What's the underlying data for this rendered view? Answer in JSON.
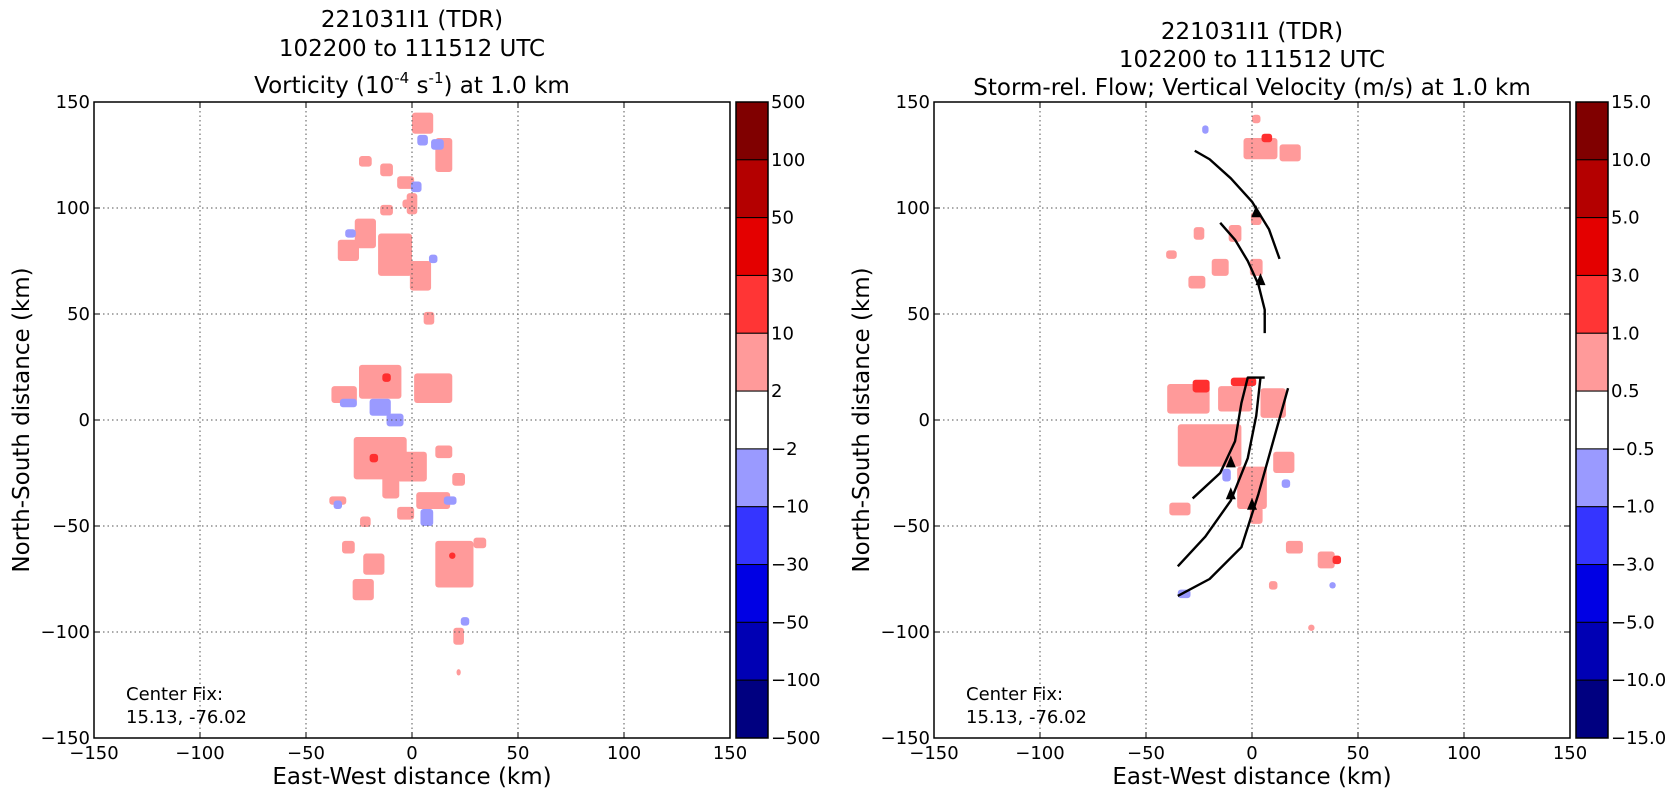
{
  "chart_data": [
    {
      "type": "heatmap",
      "title_line1": "221031I1 (TDR)",
      "title_line2": "102200 to 111512 UTC",
      "title_line3": {
        "pre": "Vorticity (10",
        "exp1": "-4",
        "mid": " s",
        "exp2": "-1",
        "post": ") at 1.0 km"
      },
      "xlabel": "East-West distance (km)",
      "ylabel": "North-South distance (km)",
      "xlim": [
        -150,
        150
      ],
      "ylim": [
        -150,
        150
      ],
      "xticks": [
        -150,
        -100,
        -50,
        0,
        50,
        100,
        150
      ],
      "yticks": [
        -150,
        -100,
        -50,
        0,
        50,
        100,
        150
      ],
      "xtick_labels": [
        "−150",
        "−100",
        "−50",
        "0",
        "50",
        "100",
        "150"
      ],
      "ytick_labels": [
        "−150",
        "−100",
        "−50",
        "0",
        "50",
        "100",
        "150"
      ],
      "grid": true,
      "annotation_line1": "Center Fix:",
      "annotation_line2": "15.13, -76.02",
      "colorbar": {
        "labels": [
          "500",
          "100",
          "50",
          "30",
          "10",
          "2",
          "−2",
          "−10",
          "−30",
          "−50",
          "−100",
          "−500"
        ],
        "colors": [
          "#800000",
          "#b40000",
          "#e40000",
          "#ff3535",
          "#ff9a9a",
          "#ffffff",
          "#9a9aff",
          "#3535ff",
          "#0000e4",
          "#0000b4",
          "#000080"
        ]
      },
      "patches": [
        {
          "x": -22,
          "y": 122,
          "w": 6,
          "h": 5,
          "c": 1
        },
        {
          "x": -12,
          "y": 118,
          "w": 6,
          "h": 6,
          "c": 1
        },
        {
          "x": 5,
          "y": 140,
          "w": 10,
          "h": 10,
          "c": 1
        },
        {
          "x": 15,
          "y": 125,
          "w": 8,
          "h": 16,
          "c": 1
        },
        {
          "x": 12,
          "y": 130,
          "w": 6,
          "h": 5,
          "c": 0
        },
        {
          "x": 5,
          "y": 132,
          "w": 5,
          "h": 5,
          "c": 0
        },
        {
          "x": -3,
          "y": 112,
          "w": 8,
          "h": 6,
          "c": 1
        },
        {
          "x": 2,
          "y": 110,
          "w": 5,
          "h": 5,
          "c": 0
        },
        {
          "x": 0,
          "y": 102,
          "w": 5,
          "h": 10,
          "c": 1
        },
        {
          "x": -12,
          "y": 99,
          "w": 6,
          "h": 5,
          "c": 1
        },
        {
          "x": -2,
          "y": 102,
          "w": 5,
          "h": 4,
          "c": 1
        },
        {
          "x": -22,
          "y": 88,
          "w": 10,
          "h": 14,
          "c": 1
        },
        {
          "x": -30,
          "y": 80,
          "w": 10,
          "h": 10,
          "c": 1
        },
        {
          "x": -8,
          "y": 78,
          "w": 16,
          "h": 20,
          "c": 1
        },
        {
          "x": 4,
          "y": 68,
          "w": 10,
          "h": 14,
          "c": 1
        },
        {
          "x": -29,
          "y": 88,
          "w": 5,
          "h": 4,
          "c": 0
        },
        {
          "x": 10,
          "y": 76,
          "w": 4,
          "h": 4,
          "c": 0
        },
        {
          "x": 8,
          "y": 48,
          "w": 5,
          "h": 6,
          "c": 1
        },
        {
          "x": -15,
          "y": 18,
          "w": 20,
          "h": 16,
          "c": 1
        },
        {
          "x": 10,
          "y": 15,
          "w": 18,
          "h": 14,
          "c": 1
        },
        {
          "x": -32,
          "y": 12,
          "w": 12,
          "h": 8,
          "c": 1
        },
        {
          "x": -12,
          "y": 20,
          "w": 4,
          "h": 4,
          "c": 2
        },
        {
          "x": -30,
          "y": 8,
          "w": 8,
          "h": 4,
          "c": 0
        },
        {
          "x": -15,
          "y": 6,
          "w": 10,
          "h": 8,
          "c": 0
        },
        {
          "x": -8,
          "y": 0,
          "w": 8,
          "h": 6,
          "c": 0
        },
        {
          "x": -15,
          "y": -18,
          "w": 25,
          "h": 20,
          "c": 1
        },
        {
          "x": 0,
          "y": -22,
          "w": 14,
          "h": 14,
          "c": 1
        },
        {
          "x": 15,
          "y": -15,
          "w": 8,
          "h": 6,
          "c": 1
        },
        {
          "x": -10,
          "y": -30,
          "w": 8,
          "h": 14,
          "c": 1
        },
        {
          "x": -18,
          "y": -18,
          "w": 4,
          "h": 4,
          "c": 2
        },
        {
          "x": 22,
          "y": -28,
          "w": 6,
          "h": 6,
          "c": 1
        },
        {
          "x": 10,
          "y": -38,
          "w": 16,
          "h": 8,
          "c": 1
        },
        {
          "x": -35,
          "y": -38,
          "w": 8,
          "h": 4,
          "c": 1
        },
        {
          "x": -3,
          "y": -44,
          "w": 8,
          "h": 6,
          "c": 1
        },
        {
          "x": 7,
          "y": -46,
          "w": 6,
          "h": 8,
          "c": 0
        },
        {
          "x": 18,
          "y": -38,
          "w": 6,
          "h": 4,
          "c": 0
        },
        {
          "x": -35,
          "y": -40,
          "w": 4,
          "h": 4,
          "c": 0
        },
        {
          "x": -22,
          "y": -48,
          "w": 5,
          "h": 5,
          "c": 1
        },
        {
          "x": -30,
          "y": -60,
          "w": 6,
          "h": 6,
          "c": 1
        },
        {
          "x": -18,
          "y": -68,
          "w": 10,
          "h": 10,
          "c": 1
        },
        {
          "x": -23,
          "y": -80,
          "w": 10,
          "h": 10,
          "c": 1
        },
        {
          "x": 20,
          "y": -68,
          "w": 18,
          "h": 22,
          "c": 1
        },
        {
          "x": 19,
          "y": -64,
          "w": 3,
          "h": 3,
          "c": 2
        },
        {
          "x": 32,
          "y": -58,
          "w": 6,
          "h": 5,
          "c": 1
        },
        {
          "x": 22,
          "y": -102,
          "w": 5,
          "h": 8,
          "c": 1
        },
        {
          "x": 25,
          "y": -95,
          "w": 4,
          "h": 4,
          "c": 0
        },
        {
          "x": 22,
          "y": -119,
          "w": 2,
          "h": 3,
          "c": 1
        }
      ]
    },
    {
      "type": "heatmap",
      "title_line1": "221031I1 (TDR)",
      "title_line2": "102200 to 111512 UTC",
      "title_line3": "Storm-rel. Flow; Vertical Velocity (m/s) at 1.0 km",
      "xlabel": "East-West distance (km)",
      "ylabel": "North-South distance (km)",
      "xlim": [
        -150,
        150
      ],
      "ylim": [
        -150,
        150
      ],
      "xticks": [
        -150,
        -100,
        -50,
        0,
        50,
        100,
        150
      ],
      "yticks": [
        -150,
        -100,
        -50,
        0,
        50,
        100,
        150
      ],
      "xtick_labels": [
        "−150",
        "−100",
        "−50",
        "0",
        "50",
        "100",
        "150"
      ],
      "ytick_labels": [
        "−150",
        "−100",
        "−50",
        "0",
        "50",
        "100",
        "150"
      ],
      "grid": true,
      "annotation_line1": "Center Fix:",
      "annotation_line2": "15.13, -76.02",
      "colorbar": {
        "labels": [
          "15.0",
          "10.0",
          "5.0",
          "3.0",
          "1.0",
          "0.5",
          "−0.5",
          "−1.0",
          "−3.0",
          "−5.0",
          "−10.0",
          "−15.0"
        ],
        "colors": [
          "#800000",
          "#b40000",
          "#e40000",
          "#ff3535",
          "#ff9a9a",
          "#ffffff",
          "#9a9aff",
          "#3535ff",
          "#0000e4",
          "#0000b4",
          "#000080"
        ]
      },
      "patches": [
        {
          "x": 4,
          "y": 128,
          "w": 16,
          "h": 10,
          "c": 1
        },
        {
          "x": 18,
          "y": 126,
          "w": 10,
          "h": 8,
          "c": 1
        },
        {
          "x": 7,
          "y": 133,
          "w": 5,
          "h": 4,
          "c": 2
        },
        {
          "x": 2,
          "y": 142,
          "w": 4,
          "h": 4,
          "c": 1
        },
        {
          "x": -22,
          "y": 137,
          "w": 3,
          "h": 4,
          "c": 0
        },
        {
          "x": -25,
          "y": 88,
          "w": 5,
          "h": 6,
          "c": 1
        },
        {
          "x": -8,
          "y": 88,
          "w": 6,
          "h": 8,
          "c": 1
        },
        {
          "x": 2,
          "y": 95,
          "w": 5,
          "h": 6,
          "c": 1
        },
        {
          "x": -15,
          "y": 72,
          "w": 8,
          "h": 8,
          "c": 1
        },
        {
          "x": 2,
          "y": 72,
          "w": 6,
          "h": 8,
          "c": 1
        },
        {
          "x": -26,
          "y": 65,
          "w": 8,
          "h": 6,
          "c": 1
        },
        {
          "x": -38,
          "y": 78,
          "w": 5,
          "h": 4,
          "c": 1
        },
        {
          "x": -30,
          "y": 10,
          "w": 20,
          "h": 14,
          "c": 1
        },
        {
          "x": -8,
          "y": 10,
          "w": 16,
          "h": 12,
          "c": 1
        },
        {
          "x": 10,
          "y": 8,
          "w": 12,
          "h": 14,
          "c": 1
        },
        {
          "x": -24,
          "y": 16,
          "w": 8,
          "h": 6,
          "c": 2
        },
        {
          "x": -4,
          "y": 18,
          "w": 12,
          "h": 4,
          "c": 2
        },
        {
          "x": -20,
          "y": -12,
          "w": 30,
          "h": 20,
          "c": 1
        },
        {
          "x": 0,
          "y": -32,
          "w": 14,
          "h": 20,
          "c": 1
        },
        {
          "x": 15,
          "y": -20,
          "w": 10,
          "h": 10,
          "c": 1
        },
        {
          "x": -34,
          "y": -42,
          "w": 10,
          "h": 6,
          "c": 1
        },
        {
          "x": 35,
          "y": -66,
          "w": 8,
          "h": 8,
          "c": 1
        },
        {
          "x": 40,
          "y": -66,
          "w": 4,
          "h": 4,
          "c": 2
        },
        {
          "x": 20,
          "y": -60,
          "w": 8,
          "h": 6,
          "c": 1
        },
        {
          "x": 2,
          "y": -45,
          "w": 6,
          "h": 8,
          "c": 1
        },
        {
          "x": 10,
          "y": -78,
          "w": 4,
          "h": 4,
          "c": 1
        },
        {
          "x": -32,
          "y": -82,
          "w": 6,
          "h": 4,
          "c": 0
        },
        {
          "x": 38,
          "y": -78,
          "w": 3,
          "h": 3,
          "c": 0
        },
        {
          "x": 28,
          "y": -98,
          "w": 3,
          "h": 3,
          "c": 1
        },
        {
          "x": -12,
          "y": -26,
          "w": 4,
          "h": 6,
          "c": 0
        },
        {
          "x": 16,
          "y": -30,
          "w": 4,
          "h": 4,
          "c": 0
        }
      ],
      "streamlines": [
        [
          [
            -27,
            127
          ],
          [
            -20,
            123
          ],
          [
            -10,
            114
          ],
          [
            0,
            103
          ],
          [
            8,
            90
          ],
          [
            13,
            76
          ]
        ],
        [
          [
            -15,
            93
          ],
          [
            -8,
            85
          ],
          [
            -2,
            75
          ],
          [
            3,
            64
          ],
          [
            6,
            52
          ],
          [
            6,
            41
          ]
        ],
        [
          [
            -35,
            -69
          ],
          [
            -22,
            -55
          ],
          [
            -10,
            -38
          ],
          [
            -2,
            -18
          ],
          [
            2,
            2
          ],
          [
            4,
            20
          ]
        ],
        [
          [
            -28,
            -37
          ],
          [
            -15,
            -25
          ],
          [
            -8,
            -10
          ],
          [
            -5,
            8
          ],
          [
            -2,
            20
          ],
          [
            6,
            20
          ]
        ],
        [
          [
            -35,
            -83
          ],
          [
            -20,
            -75
          ],
          [
            -5,
            -60
          ],
          [
            3,
            -35
          ],
          [
            10,
            -10
          ],
          [
            17,
            15
          ]
        ]
      ],
      "arrow_points": [
        [
          2,
          98
        ],
        [
          4,
          66
        ],
        [
          -10,
          -20
        ],
        [
          -10,
          -35
        ],
        [
          0,
          -40
        ]
      ]
    }
  ]
}
